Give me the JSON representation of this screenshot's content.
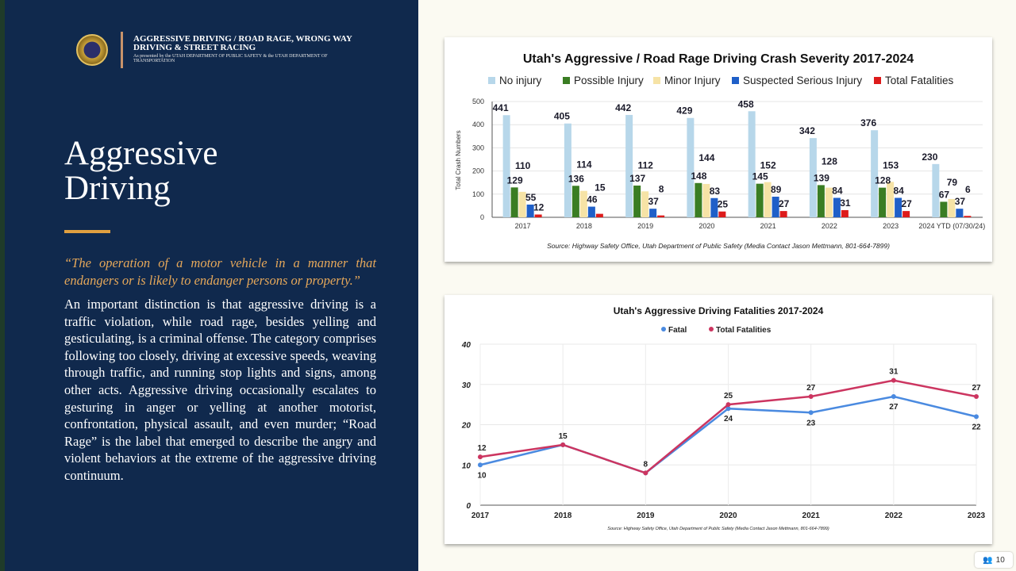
{
  "header": {
    "title": "AGGRESSIVE DRIVING / ROAD RAGE, WRONG WAY DRIVING & STREET RACING",
    "subtitle": "As presented by the UTAH DEPARTMENT OF PUBLIC SAFETY & the UTAH DEPARTMENT OF TRANSPORTATION"
  },
  "slide": {
    "title": "Aggressive Driving",
    "quote": "“The operation of a motor vehicle in a manner that endangers or is likely to endanger persons or property.”",
    "body": "An important distinction is that aggressive driving is a traffic violation, while road rage, besides yelling and gesticulating, is a criminal offense.  The category comprises following too closely, driving at excessive speeds, weaving through traffic, and running stop lights and signs, among other acts. Aggressive driving occasionally escalates to gesturing in anger or yelling at another motorist, confrontation, physical assault, and even murder; “Road Rage” is the label that emerged to describe the angry and violent behaviors at the extreme of the aggressive driving continuum."
  },
  "participants": {
    "icon": "people-icon",
    "count": "10"
  },
  "chart_data": [
    {
      "type": "bar",
      "title": "Utah's Aggressive / Road Rage Driving Crash Severity 2017-2024",
      "ylabel": "Total Crash Numbers",
      "xlabel": "",
      "ylim": [
        0,
        500
      ],
      "yticks": [
        0,
        100,
        200,
        300,
        400,
        500
      ],
      "legend": "top",
      "categories": [
        "2017",
        "2018",
        "2019",
        "2020",
        "2021",
        "2022",
        "2023",
        "2024 YTD (07/30/24)"
      ],
      "series": [
        {
          "name": "No injury",
          "color": "#b7d7ea",
          "values": [
            441,
            405,
            442,
            429,
            458,
            342,
            376,
            230
          ]
        },
        {
          "name": "Possible Injury",
          "color": "#3a7d23",
          "values": [
            129,
            136,
            137,
            148,
            145,
            139,
            128,
            67
          ]
        },
        {
          "name": "Minor Injury",
          "color": "#f6e3a6",
          "values": [
            110,
            114,
            112,
            144,
            152,
            128,
            153,
            79
          ]
        },
        {
          "name": "Suspected Serious Injury",
          "color": "#1f5fc8",
          "values": [
            55,
            46,
            37,
            83,
            89,
            84,
            84,
            37
          ]
        },
        {
          "name": "Total Fatalities",
          "color": "#dd1b1b",
          "values": [
            12,
            15,
            8,
            25,
            27,
            31,
            27,
            6
          ]
        }
      ],
      "source": "Source: Highway Safety Office, Utah Department of Public Safety (Media Contact Jason Mettmann, 801-664-7899)"
    },
    {
      "type": "line",
      "title": "Utah's Aggressive Driving Fatalities 2017-2024",
      "xlabel": "",
      "ylabel": "",
      "ylim": [
        0,
        40
      ],
      "yticks": [
        0,
        10,
        20,
        30,
        40
      ],
      "legend": "top",
      "categories": [
        "2017",
        "2018",
        "2019",
        "2020",
        "2021",
        "2022",
        "2023"
      ],
      "series": [
        {
          "name": "Fatal",
          "color": "#4a8ae0",
          "values": [
            10,
            15,
            8,
            24,
            23,
            27,
            22
          ]
        },
        {
          "name": "Total Fatalities",
          "color": "#cc3560",
          "values": [
            12,
            15,
            8,
            25,
            27,
            31,
            27
          ]
        }
      ],
      "source": "Source: Highway Safety Office, Utah Department of Public Safety (Media Contact Jason Mettmann, 801-664-7899)"
    }
  ]
}
